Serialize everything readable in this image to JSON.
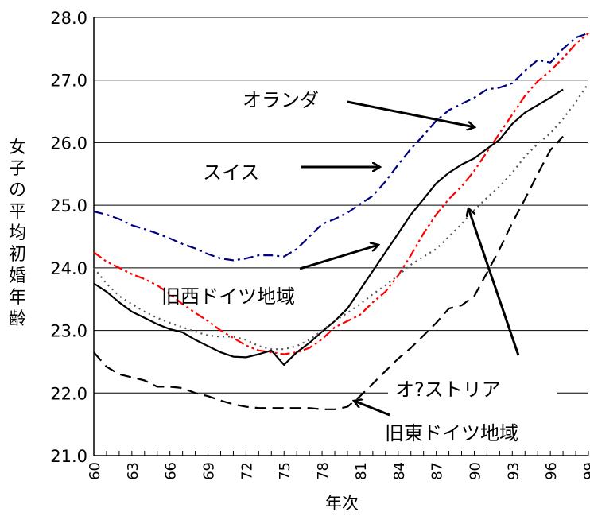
{
  "chart_data": {
    "type": "line",
    "title": "",
    "xlabel": "年次",
    "ylabel": "女子の平均初婚年齢",
    "xlim": [
      1960,
      1999
    ],
    "ylim": [
      21.0,
      28.0
    ],
    "x_ticks": [
      60,
      63,
      66,
      69,
      72,
      75,
      78,
      81,
      84,
      87,
      90,
      93,
      96,
      99
    ],
    "y_ticks": [
      "21.0",
      "22.0",
      "23.0",
      "24.0",
      "25.0",
      "26.0",
      "27.0",
      "28.0"
    ],
    "grid": "horizontal",
    "legend": "none",
    "series": [
      {
        "name": "オランダ",
        "color": "#000080",
        "style": "dashdot",
        "x": [
          1960,
          1961,
          1962,
          1963,
          1964,
          1965,
          1966,
          1967,
          1968,
          1969,
          1970,
          1971,
          1972,
          1973,
          1974,
          1975,
          1976,
          1977,
          1978,
          1979,
          1980,
          1981,
          1982,
          1983,
          1984,
          1985,
          1986,
          1987,
          1988,
          1989,
          1990,
          1991,
          1992,
          1993,
          1994,
          1995,
          1996,
          1997,
          1998,
          1999
        ],
        "y": [
          24.9,
          24.85,
          24.78,
          24.68,
          24.62,
          24.55,
          24.47,
          24.38,
          24.31,
          24.22,
          24.15,
          24.12,
          24.15,
          24.2,
          24.2,
          24.18,
          24.3,
          24.5,
          24.7,
          24.78,
          24.88,
          25.02,
          25.15,
          25.38,
          25.65,
          25.9,
          26.12,
          26.35,
          26.52,
          26.62,
          26.72,
          26.85,
          26.88,
          26.95,
          27.15,
          27.32,
          27.28,
          27.5,
          27.68,
          27.75
        ]
      },
      {
        "name": "スイス",
        "color": "#ff0000",
        "style": "dashdotdot",
        "x": [
          1960,
          1961,
          1962,
          1963,
          1964,
          1965,
          1966,
          1967,
          1968,
          1969,
          1970,
          1971,
          1972,
          1973,
          1974,
          1975,
          1976,
          1977,
          1978,
          1979,
          1980,
          1981,
          1982,
          1983,
          1984,
          1985,
          1986,
          1987,
          1988,
          1989,
          1990,
          1991,
          1992,
          1993,
          1994,
          1995,
          1996,
          1997,
          1998,
          1999
        ],
        "y": [
          24.25,
          24.1,
          24.0,
          23.9,
          23.82,
          23.72,
          23.58,
          23.42,
          23.28,
          23.15,
          23.0,
          22.88,
          22.76,
          22.68,
          22.65,
          22.62,
          22.65,
          22.72,
          22.86,
          23.05,
          23.15,
          23.25,
          23.45,
          23.62,
          23.88,
          24.2,
          24.55,
          24.85,
          25.1,
          25.3,
          25.55,
          25.85,
          26.15,
          26.45,
          26.75,
          26.98,
          27.15,
          27.35,
          27.58,
          27.75
        ]
      },
      {
        "name": "旧西ドイツ地域",
        "color": "#000000",
        "style": "solid",
        "x": [
          1960,
          1961,
          1962,
          1963,
          1964,
          1965,
          1966,
          1967,
          1968,
          1969,
          1970,
          1971,
          1972,
          1973,
          1974,
          1975,
          1976,
          1977,
          1978,
          1979,
          1980,
          1981,
          1982,
          1983,
          1984,
          1985,
          1986,
          1987,
          1988,
          1989,
          1990,
          1991,
          1992,
          1993,
          1994,
          1995,
          1996,
          1997
        ],
        "y": [
          23.75,
          23.62,
          23.45,
          23.3,
          23.2,
          23.1,
          23.02,
          22.97,
          22.85,
          22.75,
          22.65,
          22.58,
          22.57,
          22.62,
          22.68,
          22.45,
          22.65,
          22.8,
          22.98,
          23.15,
          23.35,
          23.65,
          23.95,
          24.25,
          24.55,
          24.85,
          25.1,
          25.35,
          25.52,
          25.65,
          25.75,
          25.9,
          26.05,
          26.3,
          26.48,
          26.6,
          26.72,
          26.85
        ]
      },
      {
        "name": "オ?ストリア",
        "color": "#555555",
        "style": "dotted",
        "x": [
          1960,
          1961,
          1962,
          1963,
          1964,
          1965,
          1966,
          1967,
          1968,
          1969,
          1970,
          1971,
          1972,
          1973,
          1974,
          1975,
          1976,
          1977,
          1978,
          1979,
          1980,
          1981,
          1982,
          1983,
          1984,
          1985,
          1986,
          1987,
          1988,
          1989,
          1990,
          1991,
          1992,
          1993,
          1994,
          1995,
          1996,
          1997,
          1998,
          1999
        ],
        "y": [
          24.0,
          23.75,
          23.55,
          23.42,
          23.3,
          23.2,
          23.12,
          23.05,
          22.98,
          22.92,
          22.9,
          22.9,
          22.85,
          22.75,
          22.7,
          22.7,
          22.75,
          22.85,
          23.0,
          23.15,
          23.28,
          23.42,
          23.58,
          23.72,
          23.88,
          24.05,
          24.18,
          24.3,
          24.5,
          24.7,
          24.92,
          25.12,
          25.3,
          25.52,
          25.78,
          25.98,
          26.15,
          26.38,
          26.65,
          26.95
        ]
      },
      {
        "name": "旧東ドイツ地域",
        "color": "#000000",
        "style": "dashed",
        "x": [
          1960,
          1961,
          1962,
          1963,
          1964,
          1965,
          1966,
          1967,
          1968,
          1969,
          1970,
          1971,
          1972,
          1973,
          1974,
          1975,
          1976,
          1977,
          1978,
          1979,
          1980,
          1981,
          1982,
          1983,
          1984,
          1985,
          1986,
          1987,
          1988,
          1989,
          1990,
          1991,
          1992,
          1993,
          1994,
          1995,
          1996,
          1997
        ],
        "y": [
          22.65,
          22.42,
          22.3,
          22.25,
          22.2,
          22.1,
          22.1,
          22.08,
          22.0,
          21.95,
          21.88,
          21.82,
          21.78,
          21.76,
          21.76,
          21.76,
          21.76,
          21.76,
          21.74,
          21.74,
          21.78,
          21.95,
          22.15,
          22.35,
          22.55,
          22.72,
          22.92,
          23.12,
          23.35,
          23.4,
          23.55,
          23.92,
          24.3,
          24.72,
          25.1,
          25.5,
          25.88,
          26.1
        ]
      }
    ],
    "annotations": [
      {
        "text": "オランダ"
      },
      {
        "text": "スイス"
      },
      {
        "text": "旧西ドイツ地域"
      },
      {
        "text": "オ?ストリア"
      },
      {
        "text": "旧東ドイツ地域"
      }
    ]
  }
}
